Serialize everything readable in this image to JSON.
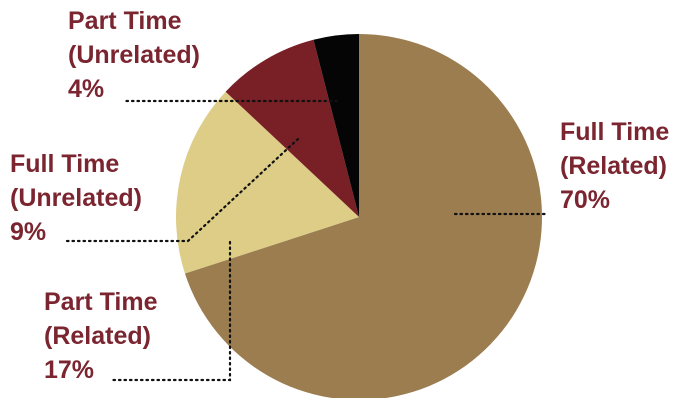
{
  "chart_data": {
    "type": "pie",
    "title": "",
    "start": "12 o'clock",
    "direction": "clockwise",
    "slices": [
      {
        "name": "Full Time (Related)",
        "lines": [
          "Full Time",
          "(Related)"
        ],
        "value": 70,
        "label": "70%",
        "color": "#9b7d50"
      },
      {
        "name": "Part Time (Related)",
        "lines": [
          "Part Time",
          "(Related)"
        ],
        "value": 17,
        "label": "17%",
        "color": "#ddcd87"
      },
      {
        "name": "Full Time (Unrelated)",
        "lines": [
          "Full Time",
          "(Unrelated)"
        ],
        "value": 9,
        "label": "9%",
        "color": "#782026"
      },
      {
        "name": "Part Time (Unrelated)",
        "lines": [
          "Part Time",
          "(Unrelated)"
        ],
        "value": 4,
        "label": "4%",
        "color": "#050505"
      }
    ],
    "label_color": "#7a2530",
    "leader_color": "#111111"
  }
}
